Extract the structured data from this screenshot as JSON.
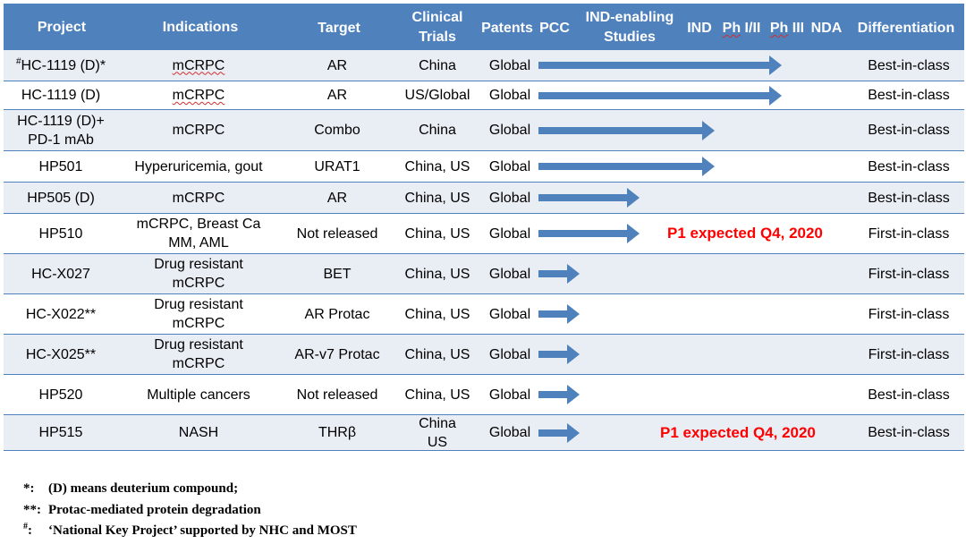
{
  "header": {
    "project": "Project",
    "indications": "Indications",
    "target": "Target",
    "clinical_trials_1": "Clinical",
    "clinical_trials_2": "Trials",
    "patents": "Patents",
    "pcc": "PCC",
    "ind_enabling_1": "IND-enabling",
    "ind_enabling_2": "Studies",
    "ind": "IND",
    "ph12_prefix": "Ph",
    "ph12_suffix": " I/II",
    "ph3_prefix": "Ph",
    "ph3_suffix": " III",
    "nda": "NDA",
    "differentiation": "Differentiation"
  },
  "rows": [
    {
      "sup": "#",
      "project": "HC-1119 (D)*",
      "indication": "mCRPC",
      "target": "AR",
      "trials": "China",
      "patents": "Global",
      "arrow_end_stage": "Ph III",
      "note": "",
      "differentiation": "Best-in-class"
    },
    {
      "sup": "",
      "project": "HC-1119 (D)",
      "indication": "mCRPC",
      "target": "AR",
      "trials": "US/Global",
      "patents": "Global",
      "arrow_end_stage": "Ph III",
      "note": "",
      "differentiation": "Best-in-class"
    },
    {
      "sup": "",
      "project": "HC-1119 (D)+\nPD-1 mAb",
      "indication": "mCRPC",
      "target": "Combo",
      "trials": "China",
      "patents": "Global",
      "arrow_end_stage": "Ph I/II",
      "note": "",
      "differentiation": "Best-in-class"
    },
    {
      "sup": "",
      "project": "HP501",
      "indication": "Hyperuricemia, gout",
      "target": "URAT1",
      "trials": "China, US",
      "patents": "Global",
      "arrow_end_stage": "Ph I/II",
      "note": "",
      "differentiation": "Best-in-class"
    },
    {
      "sup": "",
      "project": "HP505 (D)",
      "indication": "mCRPC",
      "target": "AR",
      "trials": "China, US",
      "patents": "Global",
      "arrow_end_stage": "IND-enabling Studies",
      "note": "",
      "differentiation": "Best-in-class"
    },
    {
      "sup": "",
      "project": "HP510",
      "indication": "mCRPC, Breast Ca\nMM, AML",
      "target": "Not released",
      "trials": "China, US",
      "patents": "Global",
      "arrow_end_stage": "IND-enabling Studies",
      "note": "P1 expected Q4, 2020",
      "differentiation": "First-in-class"
    },
    {
      "sup": "",
      "project": "HC-X027",
      "indication": "Drug resistant\nmCRPC",
      "target": "BET",
      "trials": "China, US",
      "patents": "Global",
      "arrow_end_stage": "PCC",
      "note": "",
      "differentiation": "First-in-class"
    },
    {
      "sup": "",
      "project": "HC-X022**",
      "indication": "Drug resistant\nmCRPC",
      "target": "AR Protac",
      "trials": "China, US",
      "patents": "Global",
      "arrow_end_stage": "PCC",
      "note": "",
      "differentiation": "First-in-class"
    },
    {
      "sup": "",
      "project": "HC-X025**",
      "indication": "Drug resistant\nmCRPC",
      "target": "AR-v7 Protac",
      "trials": "China, US",
      "patents": "Global",
      "arrow_end_stage": "PCC",
      "note": "",
      "differentiation": "First-in-class"
    },
    {
      "sup": "",
      "project": "HP520",
      "indication": "Multiple cancers",
      "target": "Not released",
      "trials": "China, US",
      "patents": "Global",
      "arrow_end_stage": "PCC",
      "note": "",
      "differentiation": "Best-in-class"
    },
    {
      "sup": "",
      "project": "HP515",
      "indication": "NASH",
      "target": "THRβ",
      "trials": "China\nUS",
      "patents": "Global",
      "arrow_end_stage": "PCC",
      "note": "P1 expected Q4, 2020",
      "differentiation": "Best-in-class"
    }
  ],
  "footnotes": [
    {
      "mark": "*:",
      "text": "(D) means deuterium compound;"
    },
    {
      "mark": "**:",
      "text": "Protac-mediated protein degradation"
    },
    {
      "mark_sup": "#",
      "mark": ":",
      "text": "‘National Key Project’ supported by NHC and  MOST"
    }
  ],
  "colors": {
    "header_bg": "#4F81BD",
    "row_alt_bg": "#E9EDF4",
    "arrow": "#4F81BD",
    "note": "#FF0000"
  }
}
